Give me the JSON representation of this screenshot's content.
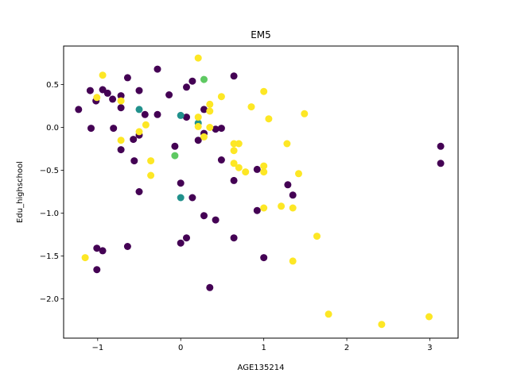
{
  "chart_data": {
    "type": "scatter",
    "title": "EM5",
    "xlabel": "AGE135214",
    "ylabel": "Edu_highschool",
    "xlim": [
      -1.41,
      3.34
    ],
    "ylim": [
      -2.46,
      0.95
    ],
    "xticks": [
      -1,
      0,
      1,
      2,
      3
    ],
    "xtick_labels": [
      "−1",
      "0",
      "1",
      "2",
      "3"
    ],
    "yticks": [
      -2.0,
      -1.5,
      -1.0,
      -0.5,
      0.0,
      0.5
    ],
    "ytick_labels": [
      "−2.0",
      "−1.5",
      "−1.0",
      "−0.5",
      "0.0",
      "0.5"
    ],
    "grid": false,
    "legend": null,
    "colors": {
      "c0": "#440154",
      "c1": "#21918c",
      "c2": "#5ec962",
      "c3": "#fde725"
    },
    "points": [
      {
        "x": -1.23,
        "y": 0.21,
        "c": "c0"
      },
      {
        "x": -1.09,
        "y": 0.43,
        "c": "c0"
      },
      {
        "x": -1.08,
        "y": -0.01,
        "c": "c0"
      },
      {
        "x": -1.02,
        "y": 0.31,
        "c": "c0"
      },
      {
        "x": -0.94,
        "y": 0.44,
        "c": "c0"
      },
      {
        "x": -0.88,
        "y": 0.4,
        "c": "c0"
      },
      {
        "x": -0.82,
        "y": 0.33,
        "c": "c0"
      },
      {
        "x": -0.81,
        "y": -0.01,
        "c": "c0"
      },
      {
        "x": -0.72,
        "y": 0.37,
        "c": "c0"
      },
      {
        "x": -0.72,
        "y": 0.23,
        "c": "c0"
      },
      {
        "x": -0.72,
        "y": -0.26,
        "c": "c0"
      },
      {
        "x": -0.64,
        "y": 0.58,
        "c": "c0"
      },
      {
        "x": -0.57,
        "y": -0.14,
        "c": "c0"
      },
      {
        "x": -0.56,
        "y": -0.39,
        "c": "c0"
      },
      {
        "x": -0.5,
        "y": 0.43,
        "c": "c0"
      },
      {
        "x": -0.5,
        "y": -0.09,
        "c": "c0"
      },
      {
        "x": -0.43,
        "y": 0.15,
        "c": "c0"
      },
      {
        "x": -0.28,
        "y": 0.68,
        "c": "c0"
      },
      {
        "x": -0.28,
        "y": 0.15,
        "c": "c0"
      },
      {
        "x": -0.14,
        "y": 0.38,
        "c": "c0"
      },
      {
        "x": -0.07,
        "y": -0.22,
        "c": "c0"
      },
      {
        "x": 0.07,
        "y": 0.47,
        "c": "c0"
      },
      {
        "x": 0.07,
        "y": 0.12,
        "c": "c0"
      },
      {
        "x": 0.14,
        "y": 0.54,
        "c": "c0"
      },
      {
        "x": 0.21,
        "y": -0.15,
        "c": "c0"
      },
      {
        "x": 0.28,
        "y": 0.21,
        "c": "c0"
      },
      {
        "x": 0.28,
        "y": -0.07,
        "c": "c0"
      },
      {
        "x": 0.42,
        "y": -0.02,
        "c": "c0"
      },
      {
        "x": 0.49,
        "y": -0.01,
        "c": "c0"
      },
      {
        "x": 0.49,
        "y": -0.38,
        "c": "c0"
      },
      {
        "x": 0.64,
        "y": 0.6,
        "c": "c0"
      },
      {
        "x": 0.64,
        "y": -0.62,
        "c": "c0"
      },
      {
        "x": 0.92,
        "y": -0.49,
        "c": "c0"
      },
      {
        "x": 0.92,
        "y": -0.97,
        "c": "c0"
      },
      {
        "x": -0.5,
        "y": -0.75,
        "c": "c0"
      },
      {
        "x": 0.0,
        "y": -0.65,
        "c": "c0"
      },
      {
        "x": 0.14,
        "y": -0.82,
        "c": "c0"
      },
      {
        "x": 0.28,
        "y": -1.03,
        "c": "c0"
      },
      {
        "x": 0.42,
        "y": -1.08,
        "c": "c0"
      },
      {
        "x": 0.07,
        "y": -1.29,
        "c": "c0"
      },
      {
        "x": 0.0,
        "y": -1.35,
        "c": "c0"
      },
      {
        "x": 0.64,
        "y": -1.29,
        "c": "c0"
      },
      {
        "x": -0.64,
        "y": -1.39,
        "c": "c0"
      },
      {
        "x": -1.01,
        "y": -1.41,
        "c": "c0"
      },
      {
        "x": -0.94,
        "y": -1.44,
        "c": "c0"
      },
      {
        "x": -1.01,
        "y": -1.66,
        "c": "c0"
      },
      {
        "x": 0.35,
        "y": -1.87,
        "c": "c0"
      },
      {
        "x": 1.0,
        "y": -1.52,
        "c": "c0"
      },
      {
        "x": 1.29,
        "y": -0.67,
        "c": "c0"
      },
      {
        "x": 1.35,
        "y": -0.79,
        "c": "c0"
      },
      {
        "x": 3.13,
        "y": -0.22,
        "c": "c0"
      },
      {
        "x": 3.13,
        "y": -0.42,
        "c": "c0"
      },
      {
        "x": -0.5,
        "y": 0.21,
        "c": "c1"
      },
      {
        "x": 0.0,
        "y": 0.14,
        "c": "c1"
      },
      {
        "x": 0.21,
        "y": 0.05,
        "c": "c1"
      },
      {
        "x": 0.0,
        "y": -0.82,
        "c": "c1"
      },
      {
        "x": 0.28,
        "y": 0.56,
        "c": "c2"
      },
      {
        "x": -0.07,
        "y": -0.33,
        "c": "c2"
      },
      {
        "x": 0.21,
        "y": 0.81,
        "c": "c3"
      },
      {
        "x": -0.94,
        "y": 0.61,
        "c": "c3"
      },
      {
        "x": -1.01,
        "y": 0.35,
        "c": "c3"
      },
      {
        "x": -0.72,
        "y": 0.31,
        "c": "c3"
      },
      {
        "x": 0.35,
        "y": 0.27,
        "c": "c3"
      },
      {
        "x": 0.35,
        "y": 0.19,
        "c": "c3"
      },
      {
        "x": 0.21,
        "y": 0.12,
        "c": "c3"
      },
      {
        "x": 0.21,
        "y": 0.01,
        "c": "c3"
      },
      {
        "x": 0.35,
        "y": 0.0,
        "c": "c3"
      },
      {
        "x": 0.28,
        "y": -0.11,
        "c": "c3"
      },
      {
        "x": -0.42,
        "y": 0.03,
        "c": "c3"
      },
      {
        "x": -0.5,
        "y": -0.05,
        "c": "c3"
      },
      {
        "x": -0.72,
        "y": -0.15,
        "c": "c3"
      },
      {
        "x": -0.36,
        "y": -0.39,
        "c": "c3"
      },
      {
        "x": -0.36,
        "y": -0.56,
        "c": "c3"
      },
      {
        "x": 0.49,
        "y": 0.36,
        "c": "c3"
      },
      {
        "x": 0.64,
        "y": -0.19,
        "c": "c3"
      },
      {
        "x": 0.64,
        "y": -0.27,
        "c": "c3"
      },
      {
        "x": 0.7,
        "y": -0.19,
        "c": "c3"
      },
      {
        "x": 0.64,
        "y": -0.42,
        "c": "c3"
      },
      {
        "x": 0.7,
        "y": -0.47,
        "c": "c3"
      },
      {
        "x": 0.78,
        "y": -0.52,
        "c": "c3"
      },
      {
        "x": 0.85,
        "y": 0.24,
        "c": "c3"
      },
      {
        "x": 1.0,
        "y": 0.42,
        "c": "c3"
      },
      {
        "x": 1.06,
        "y": 0.1,
        "c": "c3"
      },
      {
        "x": 1.0,
        "y": -0.45,
        "c": "c3"
      },
      {
        "x": 1.0,
        "y": -0.52,
        "c": "c3"
      },
      {
        "x": 1.0,
        "y": -0.94,
        "c": "c3"
      },
      {
        "x": 1.21,
        "y": -0.92,
        "c": "c3"
      },
      {
        "x": 1.28,
        "y": -0.19,
        "c": "c3"
      },
      {
        "x": 1.35,
        "y": -0.94,
        "c": "c3"
      },
      {
        "x": 1.42,
        "y": -0.54,
        "c": "c3"
      },
      {
        "x": 1.49,
        "y": 0.16,
        "c": "c3"
      },
      {
        "x": 1.35,
        "y": -1.56,
        "c": "c3"
      },
      {
        "x": 1.64,
        "y": -1.27,
        "c": "c3"
      },
      {
        "x": -1.15,
        "y": -1.52,
        "c": "c3"
      },
      {
        "x": 1.78,
        "y": -2.18,
        "c": "c3"
      },
      {
        "x": 2.42,
        "y": -2.3,
        "c": "c3"
      },
      {
        "x": 2.99,
        "y": -2.21,
        "c": "c3"
      }
    ]
  }
}
